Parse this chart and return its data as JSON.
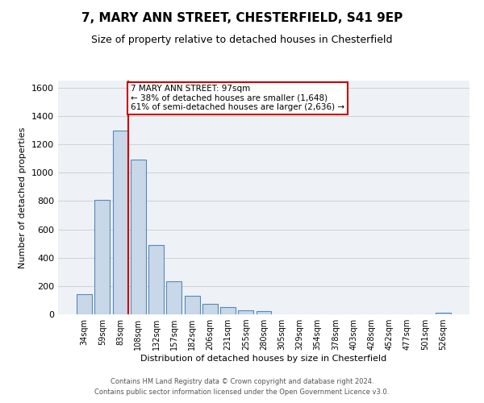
{
  "title": "7, MARY ANN STREET, CHESTERFIELD, S41 9EP",
  "subtitle": "Size of property relative to detached houses in Chesterfield",
  "xlabel": "Distribution of detached houses by size in Chesterfield",
  "ylabel": "Number of detached properties",
  "categories": [
    "34sqm",
    "59sqm",
    "83sqm",
    "108sqm",
    "132sqm",
    "157sqm",
    "182sqm",
    "206sqm",
    "231sqm",
    "255sqm",
    "280sqm",
    "305sqm",
    "329sqm",
    "354sqm",
    "378sqm",
    "403sqm",
    "428sqm",
    "452sqm",
    "477sqm",
    "501sqm",
    "526sqm"
  ],
  "bar_values": [
    140,
    810,
    1295,
    1095,
    490,
    235,
    130,
    75,
    50,
    30,
    20,
    0,
    0,
    0,
    0,
    0,
    0,
    0,
    0,
    0,
    10
  ],
  "bar_color": "#c8d8e8",
  "bar_edge_color": "#5588bb",
  "vline_color": "#cc0000",
  "annotation_title": "7 MARY ANN STREET: 97sqm",
  "annotation_line1": "← 38% of detached houses are smaller (1,648)",
  "annotation_line2": "61% of semi-detached houses are larger (2,636) →",
  "annotation_box_color": "#cc0000",
  "ylim": [
    0,
    1650
  ],
  "yticks": [
    0,
    200,
    400,
    600,
    800,
    1000,
    1200,
    1400,
    1600
  ],
  "footer1": "Contains HM Land Registry data © Crown copyright and database right 2024.",
  "footer2": "Contains public sector information licensed under the Open Government Licence v3.0.",
  "bg_color": "#eef2f6",
  "grid_color": "#d0d0d0"
}
